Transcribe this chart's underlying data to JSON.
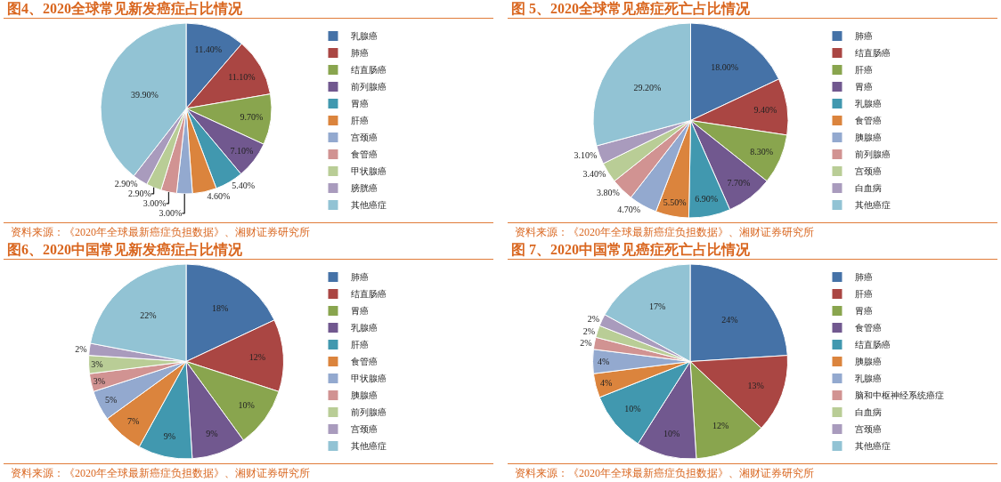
{
  "chart_data": [
    {
      "type": "pie",
      "title": "图4、2020全球常见新发癌症占比情况",
      "categories": [
        "乳腺癌",
        "肺癌",
        "结直肠癌",
        "前列腺癌",
        "胃癌",
        "肝癌",
        "宫颈癌",
        "食管癌",
        "甲状腺癌",
        "膀胱癌",
        "其他癌症"
      ],
      "values": [
        11.4,
        11.1,
        9.7,
        7.1,
        5.4,
        4.6,
        3.0,
        3.0,
        2.9,
        2.9,
        39.9
      ],
      "value_labels": [
        "11.40%",
        "11.10%",
        "9.70%",
        "7.10%",
        "5.40%",
        "4.60%",
        "3.00%",
        "3.00%",
        "2.90%",
        "2.90%",
        "39.90%"
      ],
      "colors": [
        "#4572a7",
        "#aa4643",
        "#89a54e",
        "#71588f",
        "#4198af",
        "#db843d",
        "#93a9cf",
        "#d19392",
        "#b9cd96",
        "#a99bbd",
        "#92c3d4"
      ],
      "legend": "right",
      "annotations": [
        "资料来源：《2020年全球最新癌症负担数据》、湘财证券研究所"
      ]
    },
    {
      "type": "pie",
      "title": "图 5、2020全球常见癌症死亡占比情况",
      "categories": [
        "肺癌",
        "结直肠癌",
        "肝癌",
        "胃癌",
        "乳腺癌",
        "食管癌",
        "胰腺癌",
        "前列腺癌",
        "宫颈癌",
        "白血病",
        "其他癌症"
      ],
      "values": [
        18.0,
        9.4,
        8.3,
        7.7,
        6.9,
        5.5,
        4.7,
        3.8,
        3.4,
        3.1,
        29.2
      ],
      "value_labels": [
        "18.00%",
        "9.40%",
        "8.30%",
        "7.70%",
        "6.90%",
        "5.50%",
        "4.70%",
        "3.80%",
        "3.40%",
        "3.10%",
        "29.20%"
      ],
      "colors": [
        "#4572a7",
        "#aa4643",
        "#89a54e",
        "#71588f",
        "#4198af",
        "#db843d",
        "#93a9cf",
        "#d19392",
        "#b9cd96",
        "#a99bbd",
        "#92c3d4"
      ],
      "legend": "right",
      "annotations": [
        "资料来源：《2020年全球最新癌症负担数据》、湘财证券研究所"
      ]
    },
    {
      "type": "pie",
      "title": "图6、2020中国常见新发癌症占比情况",
      "categories": [
        "肺癌",
        "结直肠癌",
        "胃癌",
        "乳腺癌",
        "肝癌",
        "食管癌",
        "甲状腺癌",
        "胰腺癌",
        "前列腺癌",
        "宫颈癌",
        "其他癌症"
      ],
      "values": [
        18,
        12,
        10,
        9,
        9,
        7,
        5,
        3,
        3,
        2,
        22
      ],
      "value_labels": [
        "18%",
        "12%",
        "10%",
        "9%",
        "9%",
        "7%",
        "5%",
        "3%",
        "3%",
        "2%",
        "22%"
      ],
      "colors": [
        "#4572a7",
        "#aa4643",
        "#89a54e",
        "#71588f",
        "#4198af",
        "#db843d",
        "#93a9cf",
        "#d19392",
        "#b9cd96",
        "#a99bbd",
        "#92c3d4"
      ],
      "legend": "right",
      "annotations": [
        "资料来源：《2020年全球最新癌症负担数据》、湘财证券研究所"
      ]
    },
    {
      "type": "pie",
      "title": "图 7、2020中国常见癌症死亡占比情况",
      "categories": [
        "肺癌",
        "肝癌",
        "胃癌",
        "食管癌",
        "结直肠癌",
        "胰腺癌",
        "乳腺癌",
        "脑和中枢神经系统癌症",
        "白血病",
        "宫颈癌",
        "其他癌症"
      ],
      "values": [
        24,
        13,
        12,
        10,
        10,
        4,
        4,
        2,
        2,
        2,
        17
      ],
      "value_labels": [
        "24%",
        "13%",
        "12%",
        "10%",
        "10%",
        "4%",
        "4%",
        "2%",
        "2%",
        "2%",
        "17%"
      ],
      "colors": [
        "#4572a7",
        "#aa4643",
        "#89a54e",
        "#71588f",
        "#4198af",
        "#db843d",
        "#93a9cf",
        "#d19392",
        "#b9cd96",
        "#a99bbd",
        "#92c3d4"
      ],
      "legend": "right",
      "annotations": [
        "资料来源：《2020年全球最新癌症负担数据》、湘财证券研究所"
      ]
    }
  ]
}
